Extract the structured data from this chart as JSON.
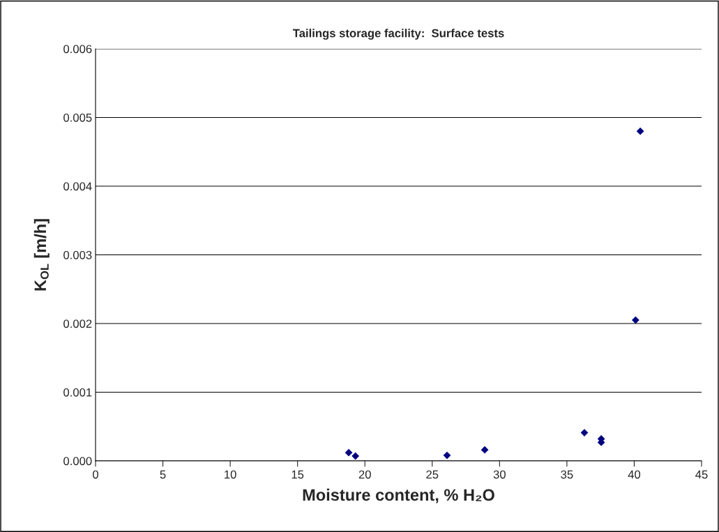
{
  "chart_data": {
    "type": "scatter",
    "title": "Tailings storage facility:  Surface tests",
    "xlabel": "Moisture content, % H₂O",
    "ylabel": "K$_{OL}$ [m/h]",
    "x": [
      18.8,
      19.3,
      26.1,
      28.9,
      36.3,
      37.55,
      37.55,
      40.1,
      40.45
    ],
    "series": [
      {
        "color": "#000080",
        "values": [
          0.00012,
          7e-05,
          8e-05,
          0.00016,
          0.00041,
          0.00032,
          0.00027,
          0.00205,
          0.0048
        ]
      }
    ],
    "marker": "diamond",
    "grid": "y",
    "xlim": [
      0,
      45
    ],
    "xticks": [
      0,
      5,
      10,
      15,
      20,
      25,
      30,
      35,
      40,
      45
    ],
    "ylim": [
      0,
      0.006
    ],
    "yticks": [
      {
        "value": 0,
        "label": "0.000"
      },
      {
        "value": 0.001,
        "label": "0.001"
      },
      {
        "value": 0.002,
        "label": "0.002"
      },
      {
        "value": 0.003,
        "label": "0.003"
      },
      {
        "value": 0.004,
        "label": "0.004"
      },
      {
        "value": 0.005,
        "label": "0.005"
      },
      {
        "value": 0.006,
        "label": "0.006"
      }
    ]
  }
}
